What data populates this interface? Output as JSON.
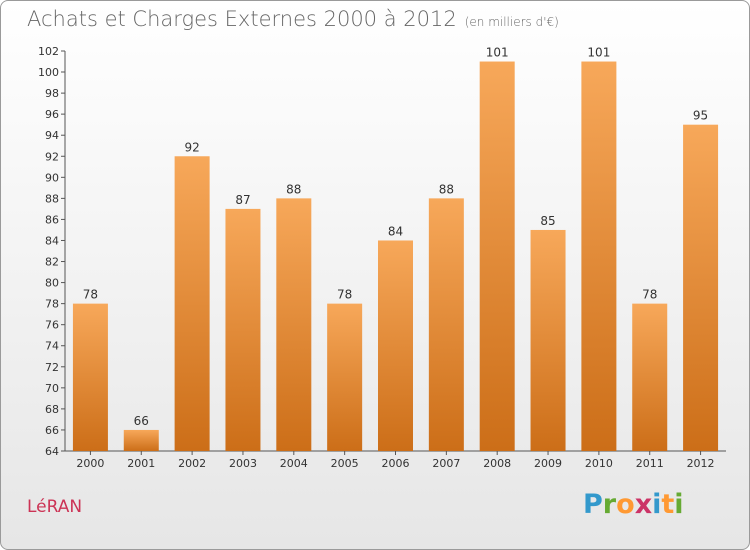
{
  "title": "Achats et Charges Externes 2000 à 2012",
  "subtitle": "(en milliers d'€)",
  "commune": "LéRAN",
  "logo": {
    "letters": [
      "P",
      "r",
      "o",
      "x",
      "i",
      "t",
      "i"
    ],
    "colors": [
      "#3399cc",
      "#66aa33",
      "#ff9933",
      "#cc3366",
      "#3399cc",
      "#ff9933",
      "#66aa33"
    ]
  },
  "chart_data": {
    "type": "bar",
    "categories": [
      "2000",
      "2001",
      "2002",
      "2003",
      "2004",
      "2005",
      "2006",
      "2007",
      "2008",
      "2009",
      "2010",
      "2011",
      "2012"
    ],
    "values": [
      78,
      66,
      92,
      87,
      88,
      78,
      84,
      88,
      101,
      85,
      101,
      78,
      95
    ],
    "ylim": [
      64,
      102
    ],
    "yticks": [
      64,
      66,
      68,
      70,
      72,
      74,
      76,
      78,
      80,
      82,
      84,
      86,
      88,
      90,
      92,
      94,
      96,
      98,
      100,
      102
    ],
    "bar_color": "#f0963c",
    "grid": false,
    "legend": "none"
  }
}
